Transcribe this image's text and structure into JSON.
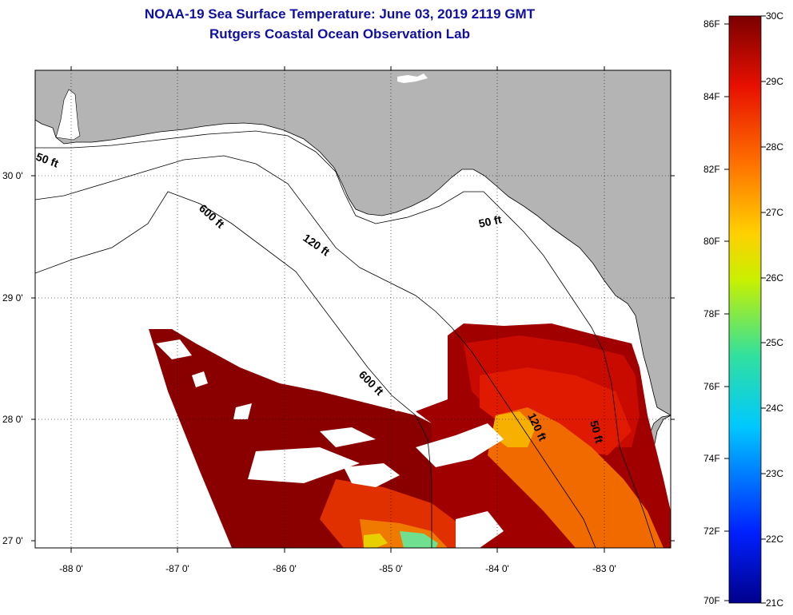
{
  "header": {
    "title": "NOAA-19 Sea Surface Temperature:  June 03, 2019 2119 GMT",
    "subtitle": "Rutgers Coastal Ocean Observation Lab"
  },
  "map": {
    "lat_labels": [
      "30 0'",
      "29 0'",
      "28 0'",
      "27 0'"
    ],
    "lon_labels": [
      "-88 0'",
      "-87 0'",
      "-86 0'",
      "-85 0'",
      "-84 0'",
      "-83 0'"
    ],
    "contour_labels": {
      "c50_west": "50 ft",
      "c50_east": "50 ft",
      "c50_south": "50 ft",
      "c120_north": "120 ft",
      "c120_south": "120 ft",
      "c600_north": "600 ft",
      "c600_south": "600 ft"
    },
    "colors": {
      "land": "#b4b4b4",
      "ocean": "#ffffff",
      "sst_dark": "#8a0000",
      "sst_red": "#e01a00",
      "sst_orange": "#f06a00"
    }
  },
  "colorbar": {
    "fahrenheit": [
      "86F",
      "84F",
      "82F",
      "80F",
      "78F",
      "76F",
      "74F",
      "72F",
      "70F"
    ],
    "celsius": [
      "30C",
      "29C",
      "28C",
      "27C",
      "26C",
      "25C",
      "24C",
      "23C",
      "22C",
      "21C"
    ]
  }
}
